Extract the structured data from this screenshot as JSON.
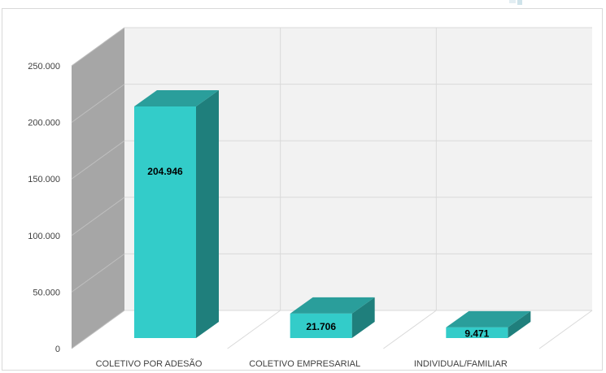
{
  "chart_data": {
    "type": "bar",
    "style": "3d-column",
    "categories": [
      "COLETIVO POR ADESÃO",
      "COLETIVO EMPRESARIAL",
      "INDIVIDUAL/FAMILIAR"
    ],
    "values": [
      204946,
      21706,
      9471
    ],
    "data_labels": [
      "204.946",
      "21.706",
      "9.471"
    ],
    "yticks": [
      0,
      50000,
      100000,
      150000,
      200000,
      250000
    ],
    "ytick_labels": [
      "0",
      "50.000",
      "100.000",
      "150.000",
      "200.000",
      "250.000"
    ],
    "ylim": [
      0,
      250000
    ],
    "title": "",
    "xlabel": "",
    "ylabel": "",
    "grid": true,
    "legend": "none",
    "colors": {
      "bar_front": "#33ccc9",
      "bar_top": "#2a9e9b",
      "bar_side": "#1f7f7c",
      "back_wall": "#f2f2f2",
      "side_wall": "#a6a6a6",
      "grid": "#d9d9d9"
    }
  }
}
